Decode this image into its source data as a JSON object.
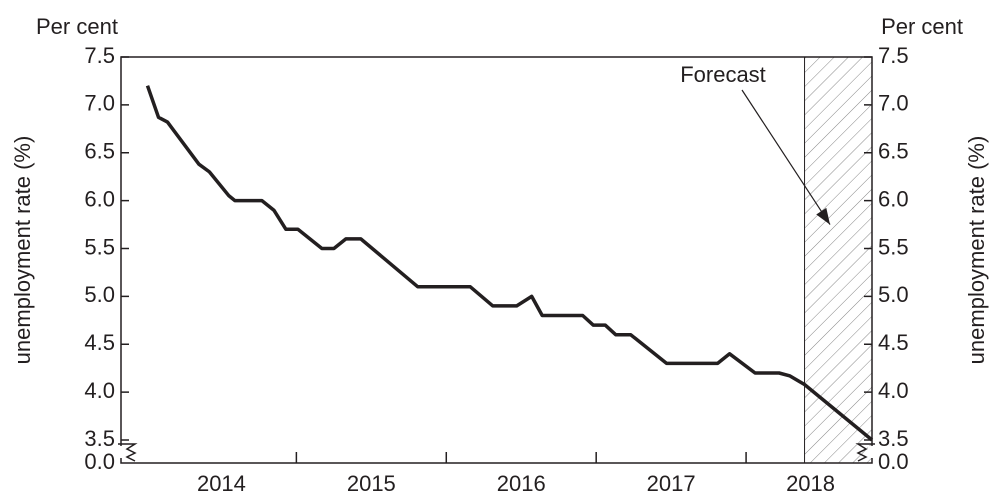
{
  "chart_data": {
    "type": "line",
    "y_unit": "Per cent",
    "y2_unit": "Per cent",
    "y_label": "unemployment rate (%)",
    "y2_label": "unemployment rate (%)",
    "annotation": "Forecast",
    "annotation_target": {
      "x": 2018.56,
      "y": 5.75
    },
    "forecast_start": 2018.39,
    "xlim": [
      2013.83,
      2018.84
    ],
    "year_boundaries": [
      2015,
      2016,
      2017,
      2018
    ],
    "xticks": [
      {
        "value": 2014.5,
        "label": "2014"
      },
      {
        "value": 2015.5,
        "label": "2015"
      },
      {
        "value": 2016.5,
        "label": "2016"
      },
      {
        "value": 2017.5,
        "label": "2017"
      },
      {
        "value": 2018.43,
        "label": "2018"
      }
    ],
    "ylim": [
      3.5,
      7.5
    ],
    "yticks": [
      3.5,
      {
        "value": 4.0,
        "label": "4.0"
      },
      4.5,
      {
        "value": 5.0,
        "label": "5.0"
      },
      5.5,
      {
        "value": 6.0,
        "label": "6.0"
      },
      6.5,
      {
        "value": 7.0,
        "label": "7.0"
      },
      7.5
    ],
    "broken_axis_tick": {
      "value": 0,
      "label": "0.0"
    },
    "series": [
      {
        "name": "Unemployment rate",
        "color": "#231f20",
        "x": [
          2014.007,
          2014.08,
          2014.14,
          2014.35,
          2014.42,
          2014.55,
          2014.59,
          2014.77,
          2014.85,
          2014.93,
          2015.01,
          2015.17,
          2015.25,
          2015.33,
          2015.43,
          2015.81,
          2016.16,
          2016.31,
          2016.47,
          2016.57,
          2016.64,
          2016.91,
          2016.98,
          2017.06,
          2017.13,
          2017.23,
          2017.47,
          2017.81,
          2017.89,
          2018.06,
          2018.22,
          2018.29,
          2018.39,
          2018.84
        ],
        "values": [
          7.2,
          6.87,
          6.82,
          6.38,
          6.3,
          6.05,
          6.0,
          6.0,
          5.9,
          5.7,
          5.7,
          5.5,
          5.5,
          5.6,
          5.6,
          5.1,
          5.1,
          4.9,
          4.9,
          5.0,
          4.8,
          4.8,
          4.7,
          4.7,
          4.6,
          4.6,
          4.3,
          4.3,
          4.4,
          4.2,
          4.2,
          4.17,
          4.08,
          3.5
        ]
      }
    ]
  }
}
